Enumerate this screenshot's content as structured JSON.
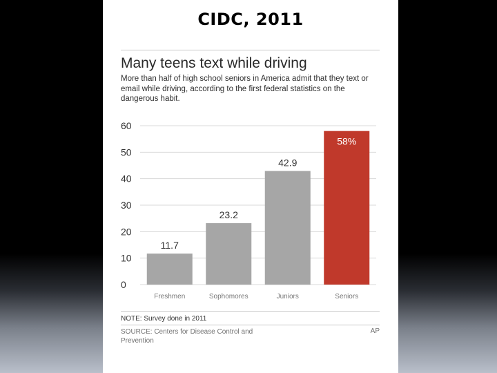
{
  "slide": {
    "title": "CIDC, 2011"
  },
  "chart_data": {
    "type": "bar",
    "title": "Many teens text while driving",
    "subtitle": "More than half of high school seniors in America admit that they text or email while driving, according to the first federal statistics on the dangerous habit.",
    "categories": [
      "Freshmen",
      "Sophomores",
      "Juniors",
      "Seniors"
    ],
    "values": [
      11.7,
      23.2,
      42.9,
      58
    ],
    "data_labels": [
      "11.7",
      "23.2",
      "42.9",
      "58%"
    ],
    "yticks": [
      0,
      10,
      20,
      30,
      40,
      50,
      60
    ],
    "ylim": [
      0,
      60
    ],
    "xlabel": "",
    "ylabel": "",
    "colors": {
      "default": "#a6a6a6",
      "highlight": "#c0392b",
      "grid": "#d8d8d8"
    },
    "highlight_index": 3,
    "note": "NOTE: Survey done in 2011",
    "source": "SOURCE: Centers for Disease Control and Prevention",
    "credit": "AP"
  }
}
